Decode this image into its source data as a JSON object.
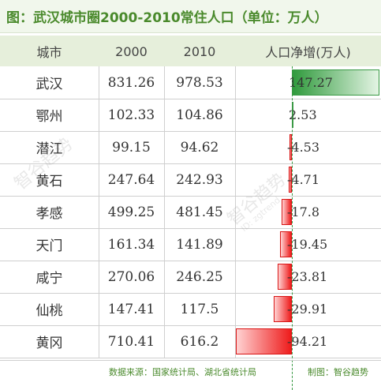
{
  "header": {
    "title": "图：武汉城市圈2000-2010常住人口（单位：万人）"
  },
  "columns": [
    "城市",
    "2000",
    "2010",
    "人口净增(万人)"
  ],
  "chart_data": {
    "type": "table",
    "title": "图：武汉城市圈2000-2010常住人口（单位：万人）",
    "columns": [
      "城市",
      "2000",
      "2010",
      "人口净增(万人)"
    ],
    "rows": [
      {
        "city": "武汉",
        "y2000": "831.26",
        "y2010": "978.53",
        "change": 147.27,
        "change_label": "147.27"
      },
      {
        "city": "鄂州",
        "y2000": "102.33",
        "y2010": "104.86",
        "change": 2.53,
        "change_label": "2.53"
      },
      {
        "city": "潜江",
        "y2000": "99.15",
        "y2010": "94.62",
        "change": -4.53,
        "change_label": "-4.53"
      },
      {
        "city": "黄石",
        "y2000": "247.64",
        "y2010": "242.93",
        "change": -4.71,
        "change_label": "-4.71"
      },
      {
        "city": "孝感",
        "y2000": "499.25",
        "y2010": "481.45",
        "change": -17.8,
        "change_label": "-17.8"
      },
      {
        "city": "天门",
        "y2000": "161.34",
        "y2010": "141.89",
        "change": -19.45,
        "change_label": "-19.45"
      },
      {
        "city": "咸宁",
        "y2000": "270.06",
        "y2010": "246.25",
        "change": -23.81,
        "change_label": "-23.81"
      },
      {
        "city": "仙桃",
        "y2000": "147.41",
        "y2010": "117.5",
        "change": -29.91,
        "change_label": "-29.91"
      },
      {
        "city": "黄冈",
        "y2000": "710.41",
        "y2010": "616.2",
        "change": -94.21,
        "change_label": "-94.21"
      }
    ],
    "colors": {
      "positive": "#2f9a3c",
      "negative": "#ee1c1c",
      "title": "#4a8a2c"
    }
  },
  "footer": {
    "source": "数据来源：国家统计局、湖北省统计局",
    "credit": "制图：智谷趋势"
  },
  "watermark": {
    "text": "智谷趋势",
    "sub": "ID: zgtrend"
  }
}
